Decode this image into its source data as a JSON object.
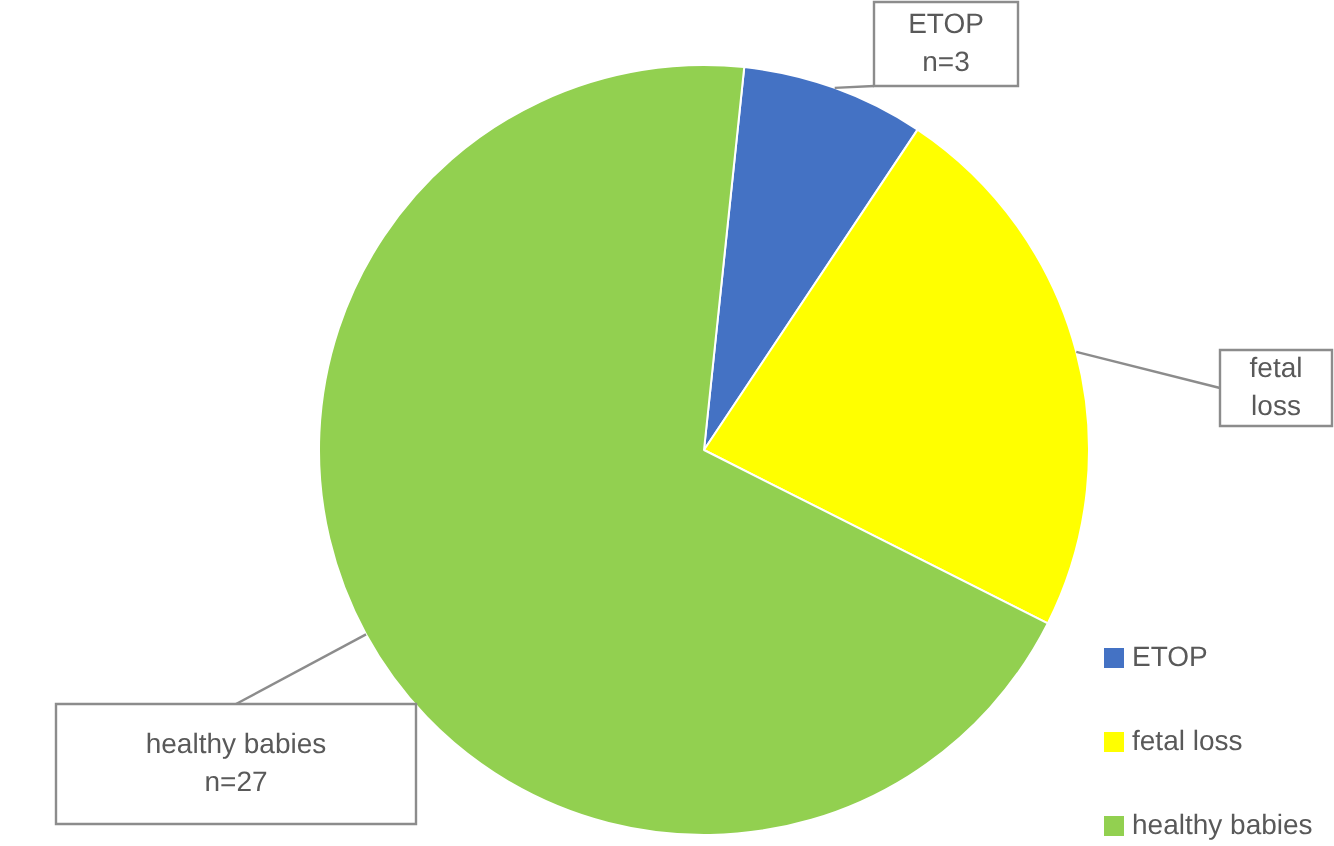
{
  "chart_data": {
    "type": "pie",
    "categories": [
      "ETOP",
      "fetal loss",
      "healthy babies"
    ],
    "values": [
      3,
      9,
      27
    ],
    "colors": [
      "#4472c4",
      "#ffff00",
      "#92d050"
    ],
    "value_labels": [
      "n=3",
      null,
      "n=27"
    ],
    "legend": "bottom right"
  }
}
